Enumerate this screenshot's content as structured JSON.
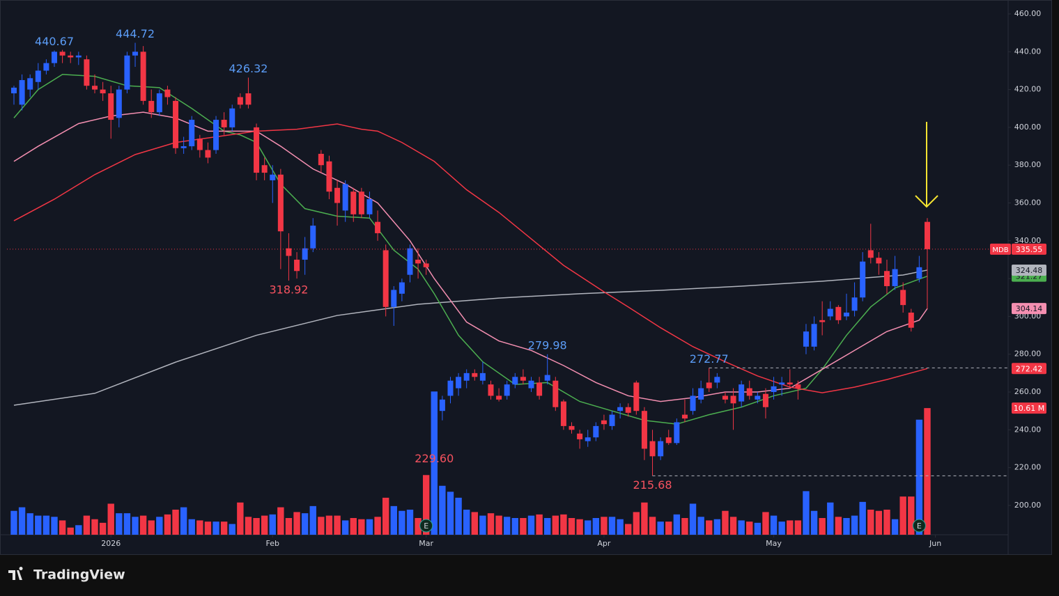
{
  "chart_data": {
    "type": "candlestick",
    "symbol": "MDB",
    "brand": "TradingView",
    "up_color": "#2962ff",
    "down_color": "#f23645",
    "open": [
      418,
      412,
      420,
      424,
      430,
      434,
      440,
      438,
      437,
      436,
      422,
      420,
      418,
      405,
      420,
      438,
      440,
      414,
      408,
      420,
      414,
      389,
      390,
      394,
      388,
      388,
      404,
      400,
      416,
      418,
      400,
      380,
      372,
      375,
      336,
      330,
      330,
      336,
      386,
      382,
      368,
      356,
      366,
      366,
      354,
      350,
      335,
      305,
      312,
      322,
      330,
      328,
      246,
      250,
      258,
      262,
      266,
      270,
      266,
      264,
      258,
      258,
      264,
      268,
      262,
      265,
      266,
      266,
      255,
      242,
      238,
      234,
      236,
      245,
      242,
      250,
      252,
      265,
      250,
      234,
      226,
      236,
      233,
      248,
      250,
      256,
      265,
      265,
      258,
      258,
      255,
      262,
      256,
      259,
      260,
      264,
      265,
      264,
      284,
      284,
      298,
      300,
      305,
      300,
      303,
      310,
      335,
      331,
      324,
      316,
      314,
      302,
      320,
      350
    ],
    "high": [
      422,
      428,
      428,
      434,
      436,
      440.67,
      441,
      440,
      440,
      438,
      428,
      424,
      422,
      422,
      440,
      444.72,
      443,
      420,
      420,
      422,
      416,
      395,
      406,
      396,
      392,
      406,
      408,
      412,
      418,
      426.32,
      402,
      384,
      380,
      378,
      344,
      334,
      342,
      352,
      388,
      385,
      372,
      372,
      368,
      368,
      366,
      356,
      338,
      316,
      320,
      338,
      336,
      330,
      259,
      258,
      268,
      270,
      272,
      272,
      276,
      266,
      262,
      266,
      270,
      272,
      268,
      268,
      279.98,
      268,
      256,
      244,
      240,
      240,
      244,
      248,
      250,
      254,
      254,
      266,
      252,
      240,
      236,
      240,
      246,
      256,
      262,
      266,
      272.77,
      270,
      260,
      262,
      266,
      266,
      260,
      262,
      268,
      268,
      272,
      266,
      296,
      300,
      308,
      308,
      306,
      312,
      318,
      334,
      349,
      334,
      330,
      332,
      318,
      304,
      332,
      352
    ],
    "low": [
      412,
      409,
      416,
      420,
      428,
      432,
      434,
      434,
      433,
      420,
      418,
      414,
      394,
      400,
      418,
      432,
      412,
      405,
      406,
      412,
      386,
      386,
      388,
      384,
      381,
      386,
      396,
      398,
      410,
      410,
      372,
      372,
      360,
      325,
      318.92,
      320,
      322,
      334,
      376,
      362,
      348,
      350,
      350,
      352,
      352,
      340,
      300,
      295,
      308,
      318,
      320,
      322,
      229.6,
      245,
      254,
      258,
      262,
      266,
      264,
      256,
      255,
      256,
      262,
      264,
      260,
      256,
      264,
      250,
      240,
      238,
      230,
      231,
      234,
      240,
      240,
      246,
      247,
      248,
      224,
      215.68,
      224,
      232,
      232,
      244,
      248,
      254,
      260,
      262,
      254,
      240,
      252,
      256,
      254,
      246,
      256,
      258,
      262,
      256,
      280,
      282,
      290,
      298,
      296,
      298,
      300,
      308,
      328,
      322,
      312,
      314,
      302,
      292,
      318,
      304
    ],
    "close": [
      421,
      425,
      426,
      430,
      434,
      440,
      438,
      437,
      438,
      422,
      420,
      418,
      404,
      420,
      438,
      440,
      414,
      408,
      418,
      416,
      389,
      390,
      404,
      388,
      384,
      404,
      400,
      410,
      412,
      412,
      376,
      376,
      375,
      345,
      332,
      324,
      336,
      348,
      380,
      366,
      360,
      370,
      354,
      354,
      362,
      344,
      305,
      314,
      318,
      336,
      328,
      326,
      258,
      256,
      266,
      268,
      270,
      268,
      270,
      258,
      256,
      264,
      268,
      266,
      266,
      258,
      269,
      252,
      242,
      240,
      235,
      236,
      242,
      243,
      248,
      252,
      249,
      250,
      230,
      226,
      234,
      233,
      244,
      246,
      258,
      262,
      262,
      268,
      256,
      254,
      264,
      258,
      258,
      252,
      263,
      265,
      264,
      262,
      292,
      296,
      297,
      304,
      298,
      302,
      310,
      329,
      331,
      328,
      316,
      325,
      306,
      294,
      326,
      335.55
    ],
    "volume": {
      "values": [
        2.0,
        2.3,
        1.8,
        1.6,
        1.6,
        1.5,
        1.2,
        0.6,
        0.8,
        1.6,
        1.3,
        1.0,
        2.6,
        1.8,
        1.8,
        1.5,
        1.6,
        1.2,
        1.5,
        1.7,
        2.1,
        2.3,
        1.3,
        1.2,
        1.1,
        1.1,
        1.1,
        0.9,
        2.7,
        1.5,
        1.4,
        1.6,
        1.7,
        2.3,
        1.4,
        1.9,
        1.8,
        2.4,
        1.5,
        1.6,
        1.6,
        1.2,
        1.4,
        1.3,
        1.3,
        1.5,
        3.1,
        2.4,
        2.0,
        2.1,
        1.4,
        5.0,
        12.0,
        4.1,
        3.6,
        3.1,
        2.1,
        1.9,
        1.6,
        1.8,
        1.6,
        1.5,
        1.4,
        1.4,
        1.6,
        1.7,
        1.4,
        1.6,
        1.7,
        1.4,
        1.3,
        1.2,
        1.4,
        1.5,
        1.5,
        1.3,
        0.9,
        1.9,
        2.7,
        1.5,
        1.1,
        1.1,
        1.7,
        1.4,
        2.6,
        1.5,
        1.2,
        1.3,
        2.0,
        1.5,
        1.2,
        1.1,
        1.0,
        1.9,
        1.6,
        1.1,
        1.2,
        1.2,
        3.65,
        2.0,
        1.4,
        2.7,
        1.5,
        1.4,
        1.6,
        2.75,
        2.1,
        2.0,
        2.1,
        1.3,
        3.2,
        3.2,
        9.64,
        10.61
      ],
      "value_labels": [
        null,
        null,
        null,
        null,
        null,
        null,
        null,
        null,
        null,
        null,
        null,
        null,
        null,
        null,
        null,
        null,
        null,
        null,
        null,
        null,
        null,
        null,
        null,
        null,
        null,
        null,
        null,
        null,
        null,
        null,
        null,
        null,
        null,
        null,
        null,
        null,
        null,
        null,
        null,
        null,
        null,
        null,
        null,
        null,
        null,
        null,
        null,
        null,
        null,
        null,
        null,
        null,
        null,
        null,
        null,
        null,
        null,
        null,
        null,
        null,
        null,
        null,
        null,
        null,
        null,
        null,
        null,
        null,
        null,
        null,
        null,
        null,
        null,
        null,
        null,
        null,
        null,
        null,
        null,
        null,
        null,
        null,
        null,
        null,
        null,
        null,
        null,
        null,
        null,
        null,
        null,
        null,
        null,
        null,
        null,
        null,
        null,
        null,
        null,
        null,
        null,
        null,
        null,
        null,
        null,
        null,
        null,
        null,
        null,
        null,
        null,
        null,
        null,
        "10.61 M"
      ]
    },
    "series": [
      {
        "color": "#b2b5be",
        "x": [
          0,
          10,
          20,
          30,
          40,
          50,
          60,
          70,
          80,
          90,
          100,
          110,
          113
        ],
        "values": [
          253,
          259.3,
          275.8,
          290,
          300.5,
          306.4,
          309.7,
          312,
          313.8,
          316,
          318.6,
          321.9,
          324.48
        ]
      },
      {
        "color": "#4caf50",
        "x": [
          0,
          3,
          6,
          10,
          14,
          18,
          22,
          26,
          28,
          30,
          33,
          36,
          40,
          44,
          47,
          50,
          52,
          55,
          58,
          62,
          66,
          70,
          74,
          78,
          82,
          86,
          90,
          94,
          98,
          100,
          103,
          106,
          109,
          113
        ],
        "values": [
          405,
          420,
          428,
          427,
          422,
          421,
          410,
          398,
          396,
          392,
          370,
          357,
          353,
          352,
          335,
          325,
          312,
          290,
          276,
          264,
          265,
          255,
          250,
          245,
          243,
          248,
          252,
          258,
          262,
          272,
          290,
          305,
          315,
          321.27
        ]
      },
      {
        "color": "#f48fb1",
        "x": [
          0,
          3,
          8,
          12,
          16,
          20,
          24,
          28,
          30,
          33,
          37,
          41,
          45,
          49,
          52,
          56,
          60,
          64,
          68,
          72,
          76,
          80,
          84,
          88,
          92,
          96,
          100,
          104,
          108,
          112,
          113
        ],
        "values": [
          382,
          390,
          402,
          406,
          408,
          405,
          398,
          398,
          398,
          390,
          378,
          370,
          360,
          340,
          320,
          297,
          287,
          282,
          274,
          265,
          258,
          255,
          257,
          260,
          260,
          262,
          272,
          282,
          292,
          298,
          304.14
        ]
      },
      {
        "color": "#f23645",
        "x": [
          0,
          5,
          10,
          15,
          20,
          25,
          30,
          35,
          40,
          43,
          45,
          48,
          52,
          56,
          60,
          64,
          68,
          73,
          76,
          80,
          84,
          88,
          92,
          96,
          100,
          104,
          108,
          113
        ],
        "values": [
          350.6,
          362,
          375,
          385.6,
          392,
          395,
          398,
          399,
          401.8,
          399,
          398,
          392,
          382,
          367,
          355,
          341,
          327,
          313,
          305,
          294,
          284,
          276,
          268.5,
          262.6,
          259.6,
          262.6,
          266.6,
          272.42
        ]
      }
    ],
    "annotations": [
      {
        "x": 5,
        "y": 440.67,
        "position": "above"
      },
      {
        "x": 15,
        "y": 444.72,
        "position": "above"
      },
      {
        "x": 29,
        "y": 426.32,
        "position": "above"
      },
      {
        "x": 34,
        "y": 318.92,
        "position": "below"
      },
      {
        "x": 52,
        "y": 229.6,
        "label": "229.60",
        "position": "below"
      },
      {
        "x": 66,
        "y": 279.98,
        "position": "above"
      },
      {
        "x": 86,
        "y": 272.77,
        "position": "above",
        "dashed": true
      },
      {
        "x": 79,
        "y": 215.68,
        "position": "below",
        "dashed": true
      }
    ],
    "events": [
      {
        "x": 51,
        "label": "E"
      },
      {
        "x": 112,
        "label": "E"
      }
    ],
    "xlim": [
      -0.862,
      123
    ],
    "xticks": [
      {
        "value": 12,
        "label": "2026"
      },
      {
        "value": 32,
        "label": "Feb"
      },
      {
        "value": 51,
        "label": "Mar"
      },
      {
        "value": 73,
        "label": "Apr"
      },
      {
        "value": 94,
        "label": "May"
      },
      {
        "value": 114,
        "label": "Jun"
      }
    ],
    "ylim": [
      184.5,
      467.37
    ],
    "yticks": [
      {
        "value": 200,
        "label": "200.00"
      },
      {
        "value": 220,
        "label": "220.00"
      },
      {
        "value": 240,
        "label": "240.00"
      },
      {
        "value": 260,
        "label": "260.00"
      },
      {
        "value": 280,
        "label": "280.00"
      },
      {
        "value": 300,
        "label": "300.00"
      },
      {
        "value": 320,
        "label": "320.00"
      },
      {
        "value": 340,
        "label": "340.00"
      },
      {
        "value": 360,
        "label": "360.00"
      },
      {
        "value": 380,
        "label": "380.00"
      },
      {
        "value": 400,
        "label": "400.00"
      },
      {
        "value": 420,
        "label": "420.00"
      },
      {
        "value": 440,
        "label": "440.00"
      },
      {
        "value": 460,
        "label": "460.00"
      }
    ],
    "y2lim": [
      0,
      44.8
    ]
  }
}
